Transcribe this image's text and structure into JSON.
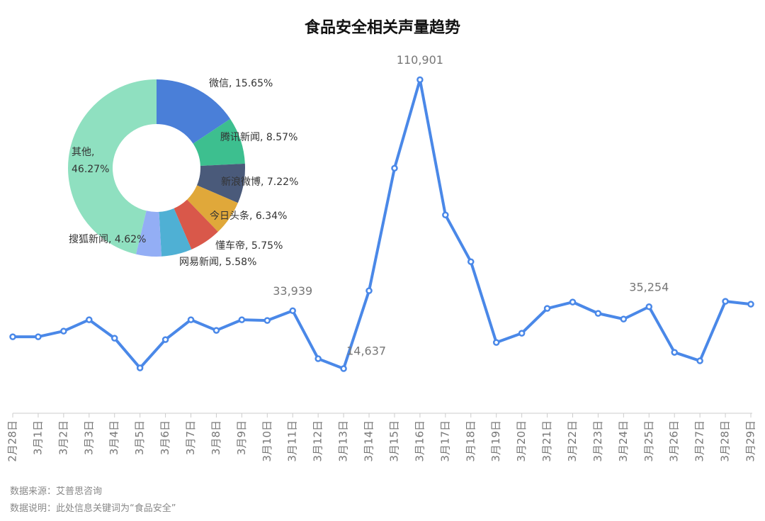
{
  "chart_data": [
    {
      "type": "line",
      "title": "食品安全相关声量趋势",
      "categories": [
        "2月28日",
        "3月1日",
        "3月2日",
        "3月3日",
        "3月4日",
        "3月5日",
        "3月6日",
        "3月7日",
        "3月8日",
        "3月9日",
        "3月10日",
        "3月11日",
        "3月12日",
        "3月13日",
        "3月14日",
        "3月15日",
        "3月16日",
        "3月17日",
        "3月18日",
        "3月19日",
        "3月20日",
        "3月21日",
        "3月22日",
        "3月23日",
        "3月24日",
        "3月25日",
        "3月26日",
        "3月27日",
        "3月28日",
        "3月29日"
      ],
      "values": [
        25250,
        25250,
        27140,
        30920,
        24780,
        14870,
        24310,
        30920,
        27380,
        30920,
        30680,
        33939,
        17940,
        14637,
        40600,
        81420,
        110901,
        65840,
        50270,
        23360,
        26430,
        34690,
        36820,
        33040,
        31150,
        35254,
        20060,
        17230,
        37050,
        36110
      ],
      "value_labels": [
        null,
        null,
        null,
        null,
        null,
        null,
        null,
        null,
        null,
        null,
        null,
        "33,939",
        null,
        "14,637",
        null,
        null,
        "110,901",
        null,
        null,
        null,
        null,
        null,
        null,
        null,
        null,
        "35,254",
        null,
        null,
        null,
        null
      ],
      "color": "#4a88e8",
      "ylim": [
        0,
        120000
      ]
    },
    {
      "type": "pie",
      "categories": [
        "微信",
        "腾讯新闻",
        "新浪微博",
        "今日头条",
        "懂车帝",
        "网易新闻",
        "搜狐新闻",
        "其他"
      ],
      "labels": [
        "微信, 15.65%",
        "腾讯新闻, 8.57%",
        "新浪微博, 7.22%",
        "今日头条, 6.34%",
        "懂车帝, 5.75%",
        "网易新闻, 5.58%",
        "搜狐新闻, 4.62%",
        "其他, 46.27%"
      ],
      "values": [
        15.65,
        8.57,
        7.22,
        6.34,
        5.75,
        5.58,
        4.62,
        46.27
      ],
      "colors": [
        "#4a7fd8",
        "#3dbf8f",
        "#4a5a7a",
        "#e0a83a",
        "#d9584a",
        "#4fb0d4",
        "#93aef5",
        "#8fe0c0"
      ]
    }
  ],
  "footnotes": [
    "数据来源：艾普思咨询",
    "数据说明：此处信息关键词为“食品安全”"
  ]
}
